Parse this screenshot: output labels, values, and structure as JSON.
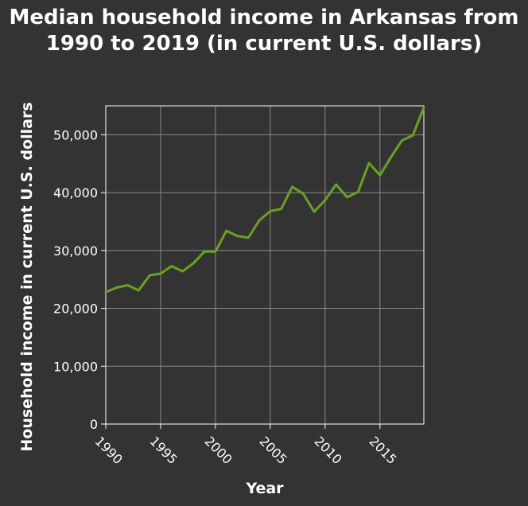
{
  "chart_data": {
    "type": "line",
    "title_lines": [
      "Median household income in Arkansas from",
      "1990 to 2019 (in current U.S. dollars)"
    ],
    "xlabel": "Year",
    "ylabel": "Household income in current U.S. dollars",
    "xlim": [
      1990,
      2019
    ],
    "ylim": [
      0,
      55000
    ],
    "x_ticks": [
      1990,
      1995,
      2000,
      2005,
      2010,
      2015
    ],
    "y_ticks": [
      0,
      10000,
      20000,
      30000,
      40000,
      50000
    ],
    "y_tick_labels": [
      "0",
      "10,000",
      "20,000",
      "30,000",
      "40,000",
      "50,000"
    ],
    "grid": true,
    "background_color": "#333333",
    "line_color": "#6aa121",
    "series": [
      {
        "x": [
          1990,
          1991,
          1992,
          1993,
          1994,
          1995,
          1996,
          1997,
          1998,
          1999,
          2000,
          2001,
          2002,
          2003,
          2004,
          2005,
          2006,
          2007,
          2008,
          2009,
          2010,
          2011,
          2012,
          2013,
          2014,
          2015,
          2016,
          2017,
          2018,
          2019
        ],
        "values": [
          22800,
          23600,
          24000,
          23100,
          25700,
          26000,
          27300,
          26400,
          27800,
          29800,
          29800,
          33400,
          32500,
          32200,
          35200,
          36800,
          37200,
          41000,
          39800,
          36700,
          38700,
          41400,
          39200,
          40100,
          45100,
          43000,
          46100,
          49000,
          49900,
          54700
        ]
      }
    ]
  }
}
